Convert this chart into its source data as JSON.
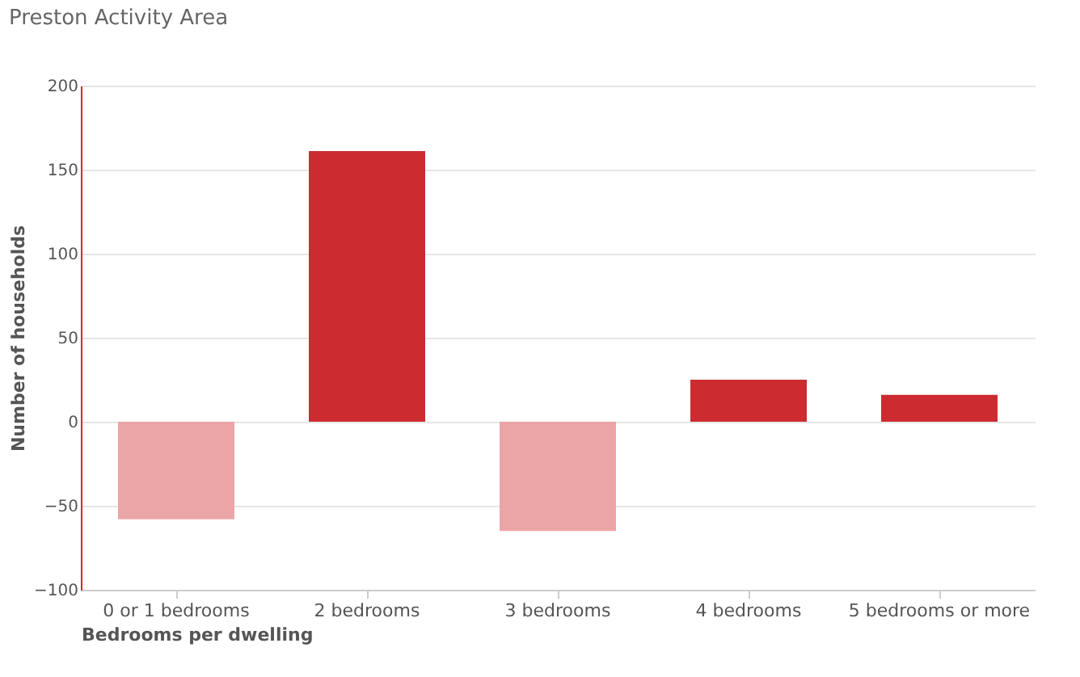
{
  "chart_data": {
    "type": "bar",
    "subtitle": "Preston Activity Area",
    "xlabel": "Bedrooms per dwelling",
    "ylabel": "Number of households",
    "categories": [
      "0 or 1 bedrooms",
      "2 bedrooms",
      "3 bedrooms",
      "4 bedrooms",
      "5 bedrooms or more"
    ],
    "values": [
      -58,
      161,
      -65,
      25,
      16
    ],
    "colors": [
      "#eba5a7",
      "#cc2b30",
      "#eba5a7",
      "#cc2b30",
      "#cc2b30"
    ],
    "ylim": [
      -100,
      200
    ],
    "yticks": [
      -100,
      -50,
      0,
      50,
      100,
      150,
      200
    ],
    "grid": "y"
  }
}
